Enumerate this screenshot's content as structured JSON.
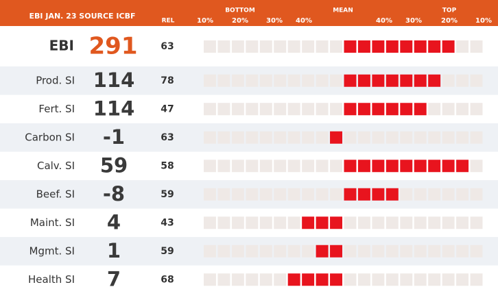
{
  "header": {
    "title": "EBI JAN. 23 SOURCE ICBF",
    "rel": "REL",
    "bottom": "BOTTOM",
    "mean": "MEAN",
    "top": "TOP",
    "scale": [
      "10%",
      "20%",
      "30%",
      "40%",
      "40%",
      "30%",
      "20%",
      "10%"
    ]
  },
  "rows": [
    {
      "label": "EBI",
      "value": "291",
      "rel": "63",
      "cells": 8
    },
    {
      "label": "Prod. SI",
      "value": "114",
      "rel": "78",
      "cells": 7
    },
    {
      "label": "Fert. SI",
      "value": "114",
      "rel": "47",
      "cells": 6
    },
    {
      "label": "Carbon SI",
      "value": "-1",
      "rel": "63",
      "cells": -1
    },
    {
      "label": "Calv. SI",
      "value": "59",
      "rel": "58",
      "cells": 9
    },
    {
      "label": "Beef. SI",
      "value": "-8",
      "rel": "59",
      "cells": 4
    },
    {
      "label": "Maint. SI",
      "value": "4",
      "rel": "43",
      "cells": -3
    },
    {
      "label": "Mgmt. SI",
      "value": "1",
      "rel": "59",
      "cells": -2
    },
    {
      "label": "Health SI",
      "value": "7",
      "rel": "68",
      "cells": -4
    }
  ]
}
